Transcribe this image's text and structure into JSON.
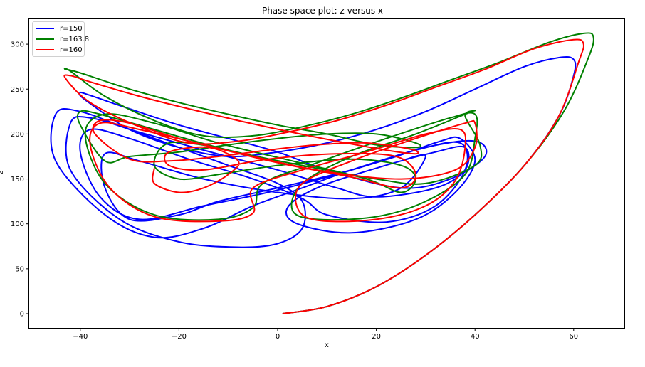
{
  "chart_data": {
    "type": "line",
    "title": "Phase space plot: z versus x",
    "xlabel": "x",
    "ylabel": "z",
    "xlim": [
      -50,
      70
    ],
    "ylim": [
      -15,
      325
    ],
    "xticks": [
      -40,
      -20,
      0,
      20,
      40,
      60
    ],
    "xtick_labels": [
      "−40",
      "−20",
      "0",
      "20",
      "40",
      "60"
    ],
    "yticks": [
      0,
      50,
      100,
      150,
      200,
      250,
      300
    ],
    "ytick_labels": [
      "0",
      "50",
      "100",
      "150",
      "200",
      "250",
      "300"
    ],
    "grid": false,
    "legend_position": "upper left",
    "series": [
      {
        "name": "r=150",
        "color": "#0000ff",
        "description": "Lorenz attractor trajectory; initial transient rises from (1,0) to peak near (60,285), then chaotic loops between lobes centered near x=-20 and x=20; z range approx 73 to 285, x range approx -45 to 60",
        "points": [
          [
            1,
            0
          ],
          [
            10,
            8
          ],
          [
            20,
            30
          ],
          [
            30,
            65
          ],
          [
            40,
            110
          ],
          [
            50,
            165
          ],
          [
            57,
            220
          ],
          [
            60,
            265
          ],
          [
            60,
            283
          ],
          [
            57,
            285
          ],
          [
            50,
            275
          ],
          [
            40,
            250
          ],
          [
            30,
            225
          ],
          [
            20,
            205
          ],
          [
            10,
            190
          ],
          [
            0,
            180
          ],
          [
            -10,
            175
          ],
          [
            -20,
            185
          ],
          [
            -30,
            205
          ],
          [
            -39,
            238
          ],
          [
            -40,
            246
          ],
          [
            -38,
            243
          ],
          [
            -30,
            228
          ],
          [
            -20,
            210
          ],
          [
            -10,
            195
          ],
          [
            0,
            180
          ],
          [
            10,
            160
          ],
          [
            25,
            140
          ],
          [
            35,
            150
          ],
          [
            42,
            175
          ],
          [
            40,
            192
          ],
          [
            30,
            185
          ],
          [
            15,
            160
          ],
          [
            5,
            140
          ],
          [
            -5,
            120
          ],
          [
            -15,
            95
          ],
          [
            -25,
            85
          ],
          [
            -35,
            110
          ],
          [
            -45,
            170
          ],
          [
            -45,
            222
          ],
          [
            -40,
            225
          ],
          [
            -30,
            205
          ],
          [
            -20,
            185
          ],
          [
            -10,
            165
          ],
          [
            0,
            145
          ],
          [
            5,
            125
          ],
          [
            5,
            95
          ],
          [
            0,
            78
          ],
          [
            -8,
            74
          ],
          [
            -20,
            80
          ],
          [
            -32,
            105
          ],
          [
            -42,
            160
          ],
          [
            -42,
            212
          ],
          [
            -38,
            218
          ],
          [
            -28,
            202
          ],
          [
            -15,
            182
          ],
          [
            0,
            160
          ],
          [
            12,
            140
          ],
          [
            20,
            130
          ],
          [
            32,
            140
          ],
          [
            38,
            160
          ],
          [
            38,
            185
          ],
          [
            32,
            180
          ],
          [
            20,
            162
          ],
          [
            8,
            140
          ],
          [
            2,
            118
          ],
          [
            4,
            100
          ],
          [
            15,
            90
          ],
          [
            28,
            105
          ],
          [
            36,
            135
          ],
          [
            40,
            170
          ],
          [
            37,
            195
          ],
          [
            33,
            192
          ],
          [
            24,
            175
          ],
          [
            10,
            152
          ],
          [
            -2,
            135
          ],
          [
            -15,
            120
          ],
          [
            -28,
            105
          ],
          [
            -36,
            130
          ],
          [
            -40,
            180
          ],
          [
            -38,
            205
          ],
          [
            -30,
            195
          ],
          [
            -18,
            172
          ],
          [
            -5,
            150
          ],
          [
            5,
            128
          ],
          [
            10,
            110
          ],
          [
            22,
            102
          ],
          [
            32,
            120
          ],
          [
            38,
            160
          ],
          [
            37,
            190
          ],
          [
            28,
            182
          ],
          [
            15,
            160
          ],
          [
            0,
            140
          ],
          [
            -12,
            125
          ],
          [
            -20,
            110
          ],
          [
            -30,
            105
          ],
          [
            -35,
            140
          ],
          [
            -35,
            178
          ],
          [
            -28,
            170
          ],
          [
            -15,
            150
          ],
          [
            0,
            135
          ],
          [
            15,
            128
          ],
          [
            25,
            140
          ],
          [
            30,
            175
          ],
          [
            26,
            172
          ]
        ]
      },
      {
        "name": "r=163.8",
        "color": "#008000",
        "description": "Lorenz attractor trajectory; peak near (64,312); loops x approx -43 to 64, z approx 103 to 312",
        "points": [
          [
            1,
            0
          ],
          [
            10,
            8
          ],
          [
            20,
            30
          ],
          [
            30,
            65
          ],
          [
            40,
            110
          ],
          [
            50,
            165
          ],
          [
            58,
            225
          ],
          [
            63,
            285
          ],
          [
            64,
            308
          ],
          [
            62,
            312
          ],
          [
            55,
            302
          ],
          [
            45,
            280
          ],
          [
            35,
            260
          ],
          [
            25,
            240
          ],
          [
            15,
            222
          ],
          [
            5,
            208
          ],
          [
            -5,
            198
          ],
          [
            -15,
            198
          ],
          [
            -25,
            215
          ],
          [
            -35,
            242
          ],
          [
            -42,
            270
          ],
          [
            -43,
            272
          ],
          [
            -40,
            268
          ],
          [
            -30,
            250
          ],
          [
            -20,
            235
          ],
          [
            -10,
            222
          ],
          [
            0,
            210
          ],
          [
            10,
            200
          ],
          [
            20,
            188
          ],
          [
            28,
            185
          ],
          [
            28,
            190
          ],
          [
            20,
            200
          ],
          [
            10,
            200
          ],
          [
            0,
            195
          ],
          [
            -10,
            188
          ],
          [
            -20,
            180
          ],
          [
            -30,
            175
          ],
          [
            -35,
            170
          ],
          [
            -40,
            210
          ],
          [
            -40,
            225
          ],
          [
            -36,
            222
          ],
          [
            -25,
            205
          ],
          [
            -10,
            182
          ],
          [
            5,
            165
          ],
          [
            20,
            150
          ],
          [
            30,
            145
          ],
          [
            40,
            165
          ],
          [
            41,
            188
          ],
          [
            38,
            220
          ],
          [
            40,
            226
          ],
          [
            38,
            222
          ],
          [
            28,
            200
          ],
          [
            15,
            175
          ],
          [
            5,
            145
          ],
          [
            3,
            115
          ],
          [
            8,
            105
          ],
          [
            20,
            108
          ],
          [
            30,
            125
          ],
          [
            38,
            155
          ],
          [
            40,
            195
          ],
          [
            40,
            222
          ],
          [
            35,
            218
          ],
          [
            22,
            195
          ],
          [
            8,
            168
          ],
          [
            -3,
            145
          ],
          [
            -5,
            118
          ],
          [
            -12,
            105
          ],
          [
            -25,
            110
          ],
          [
            -35,
            145
          ],
          [
            -39,
            200
          ],
          [
            -35,
            222
          ],
          [
            -25,
            212
          ],
          [
            -12,
            190
          ],
          [
            3,
            170
          ],
          [
            18,
            150
          ],
          [
            25,
            135
          ],
          [
            28,
            150
          ],
          [
            25,
            165
          ],
          [
            15,
            172
          ],
          [
            0,
            165
          ],
          [
            -12,
            155
          ],
          [
            -20,
            150
          ],
          [
            -25,
            165
          ],
          [
            -22,
            190
          ],
          [
            -12,
            185
          ]
        ]
      },
      {
        "name": "r=160",
        "color": "#ff0000",
        "description": "Lorenz attractor trajectory; peak near (62,305); loops x approx -43 to 62, z approx 102 to 305",
        "points": [
          [
            1,
            0
          ],
          [
            10,
            8
          ],
          [
            20,
            30
          ],
          [
            30,
            65
          ],
          [
            40,
            110
          ],
          [
            50,
            165
          ],
          [
            57,
            220
          ],
          [
            61,
            280
          ],
          [
            62,
            300
          ],
          [
            60,
            305
          ],
          [
            52,
            295
          ],
          [
            42,
            272
          ],
          [
            32,
            252
          ],
          [
            22,
            232
          ],
          [
            12,
            215
          ],
          [
            2,
            202
          ],
          [
            -8,
            192
          ],
          [
            -18,
            190
          ],
          [
            -28,
            208
          ],
          [
            -38,
            235
          ],
          [
            -43,
            262
          ],
          [
            -42,
            265
          ],
          [
            -38,
            258
          ],
          [
            -28,
            242
          ],
          [
            -18,
            228
          ],
          [
            -8,
            215
          ],
          [
            2,
            203
          ],
          [
            12,
            192
          ],
          [
            22,
            182
          ],
          [
            28,
            178
          ],
          [
            27,
            183
          ],
          [
            18,
            190
          ],
          [
            8,
            188
          ],
          [
            -2,
            182
          ],
          [
            -12,
            175
          ],
          [
            -22,
            170
          ],
          [
            -30,
            172
          ],
          [
            -37,
            200
          ],
          [
            -36,
            215
          ],
          [
            -30,
            212
          ],
          [
            -20,
            195
          ],
          [
            -5,
            175
          ],
          [
            10,
            158
          ],
          [
            25,
            150
          ],
          [
            36,
            160
          ],
          [
            40,
            185
          ],
          [
            40,
            212
          ],
          [
            38,
            212
          ],
          [
            28,
            195
          ],
          [
            15,
            170
          ],
          [
            5,
            145
          ],
          [
            4,
            118
          ],
          [
            8,
            104
          ],
          [
            20,
            105
          ],
          [
            30,
            120
          ],
          [
            36,
            148
          ],
          [
            38,
            185
          ],
          [
            37,
            205
          ],
          [
            30,
            200
          ],
          [
            18,
            180
          ],
          [
            5,
            160
          ],
          [
            -5,
            140
          ],
          [
            -5,
            112
          ],
          [
            -12,
            103
          ],
          [
            -25,
            108
          ],
          [
            -34,
            140
          ],
          [
            -38,
            188
          ],
          [
            -36,
            212
          ],
          [
            -28,
            205
          ],
          [
            -15,
            188
          ],
          [
            0,
            168
          ],
          [
            15,
            152
          ],
          [
            25,
            140
          ],
          [
            28,
            155
          ],
          [
            24,
            175
          ],
          [
            12,
            178
          ],
          [
            -2,
            172
          ],
          [
            -15,
            160
          ],
          [
            -22,
            165
          ],
          [
            -22,
            180
          ],
          [
            -14,
            185
          ],
          [
            -8,
            170
          ],
          [
            -10,
            155
          ],
          [
            -15,
            140
          ],
          [
            -20,
            135
          ],
          [
            -25,
            145
          ],
          [
            -25,
            162
          ]
        ]
      }
    ]
  },
  "legend": {
    "items": [
      {
        "label": "r=150",
        "color": "#0000ff"
      },
      {
        "label": "r=163.8",
        "color": "#008000"
      },
      {
        "label": "r=160",
        "color": "#ff0000"
      }
    ]
  }
}
